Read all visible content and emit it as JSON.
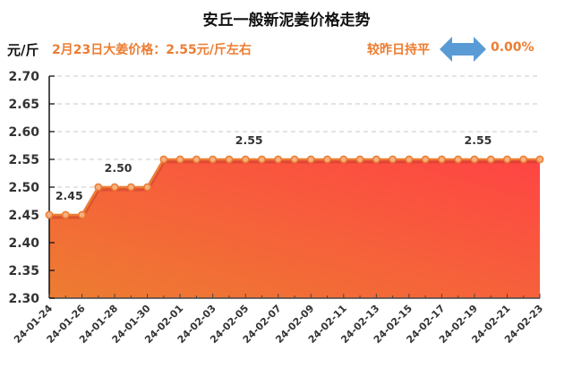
{
  "header": {
    "title": "安丘一般新泥姜价格走势",
    "unit": "元/斤",
    "price_note": "2月23日大姜价格：2.55元/斤左右",
    "comparison_label": "较昨日持平",
    "comparison_icon": "double-arrow-horizontal-icon",
    "comparison_value": "0.00%"
  },
  "colors": {
    "accent": "#ED7D31",
    "arrow": "#5B9BD5",
    "area_top": "#FF4444",
    "area_bottom": "#ED7D31",
    "line": "#ED7D31"
  },
  "chart_data": {
    "type": "area",
    "title": "安丘一般新泥姜价格走势",
    "xlabel": "",
    "ylabel": "元/斤",
    "ylim": [
      2.3,
      2.7
    ],
    "yticks": [
      "2.30",
      "2.35",
      "2.40",
      "2.45",
      "2.50",
      "2.55",
      "2.60",
      "2.65",
      "2.70"
    ],
    "grid": "horizontal dashed",
    "legend": "none",
    "x": [
      "24-01-24",
      "24-01-25",
      "24-01-26",
      "24-01-27",
      "24-01-28",
      "24-01-29",
      "24-01-30",
      "24-01-31",
      "24-02-01",
      "24-02-02",
      "24-02-03",
      "24-02-04",
      "24-02-05",
      "24-02-06",
      "24-02-07",
      "24-02-08",
      "24-02-09",
      "24-02-10",
      "24-02-11",
      "24-02-12",
      "24-02-13",
      "24-02-14",
      "24-02-15",
      "24-02-16",
      "24-02-17",
      "24-02-18",
      "24-02-19",
      "24-02-20",
      "24-02-21",
      "24-02-22",
      "24-02-23"
    ],
    "xtick_labels": [
      "24-01-24",
      "24-01-26",
      "24-01-28",
      "24-01-30",
      "24-02-01",
      "24-02-03",
      "24-02-05",
      "24-02-07",
      "24-02-09",
      "24-02-11",
      "24-02-13",
      "24-02-15",
      "24-02-17",
      "24-02-19",
      "24-02-21",
      "24-02-23"
    ],
    "series": [
      {
        "name": "价格",
        "values": [
          2.45,
          2.45,
          2.45,
          2.5,
          2.5,
          2.5,
          2.5,
          2.55,
          2.55,
          2.55,
          2.55,
          2.55,
          2.55,
          2.55,
          2.55,
          2.55,
          2.55,
          2.55,
          2.55,
          2.55,
          2.55,
          2.55,
          2.55,
          2.55,
          2.55,
          2.55,
          2.55,
          2.55,
          2.55,
          2.55,
          2.55
        ]
      }
    ],
    "annotations": [
      {
        "text": "2.45",
        "index": 1
      },
      {
        "text": "2.50",
        "index": 4
      },
      {
        "text": "2.55",
        "index": 12
      },
      {
        "text": "2.55",
        "index": 26
      }
    ]
  }
}
